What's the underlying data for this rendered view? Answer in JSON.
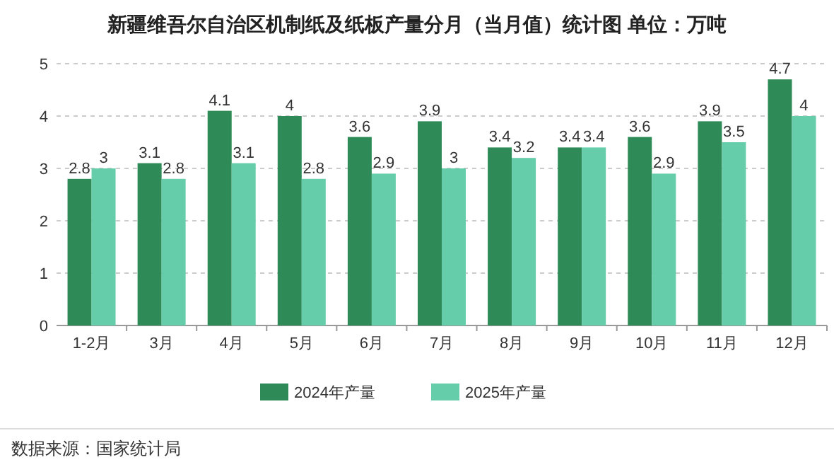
{
  "chart_data": {
    "type": "bar",
    "title": "新疆维吾尔自治区机制纸及纸板产量分月（当月值）统计图 单位：万吨",
    "categories": [
      "1-2月",
      "3月",
      "4月",
      "5月",
      "6月",
      "7月",
      "8月",
      "9月",
      "10月",
      "11月",
      "12月"
    ],
    "series": [
      {
        "name": "2024年产量",
        "color": "#2e8b57",
        "values": [
          2.8,
          3.1,
          4.1,
          4,
          3.6,
          3.9,
          3.4,
          3.4,
          3.6,
          3.9,
          4.7
        ]
      },
      {
        "name": "2025年产量",
        "color": "#66cdaa",
        "values": [
          3,
          2.8,
          3.1,
          2.8,
          2.9,
          3,
          3.2,
          3.4,
          2.9,
          3.5,
          4
        ]
      }
    ],
    "ylim": [
      0,
      5
    ],
    "yticks": [
      0,
      1,
      2,
      3,
      4,
      5
    ],
    "grid": "y",
    "legend": "bottom",
    "data_labels": true,
    "annotations": [
      "数据来源：国家统计局"
    ]
  }
}
